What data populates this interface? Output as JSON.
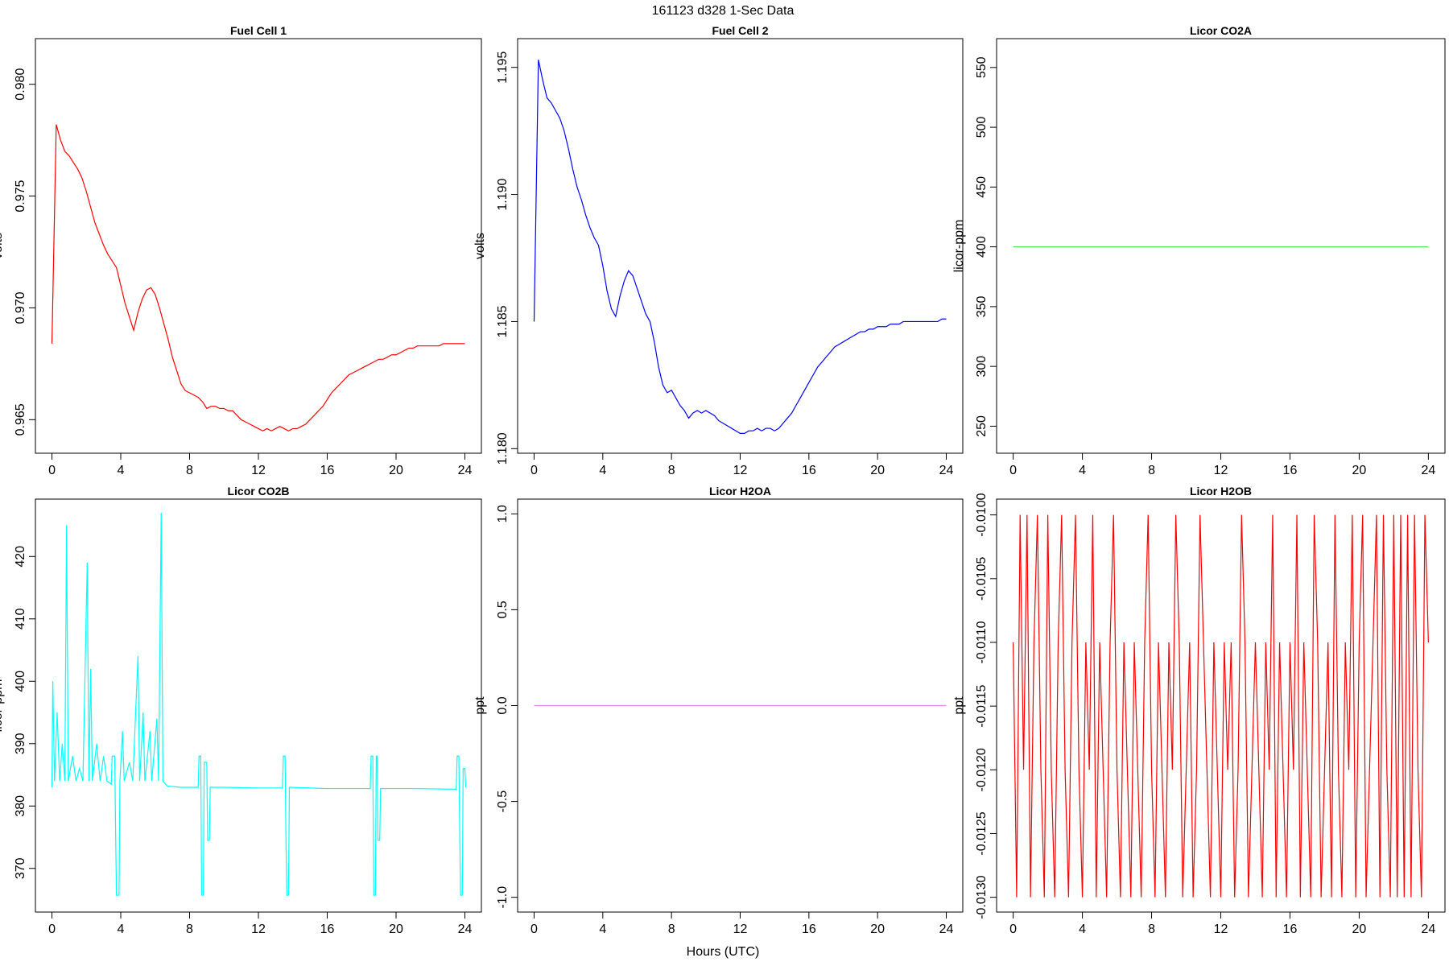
{
  "title": "161123   d328   1-Sec Data",
  "xlabel": "Hours (UTC)",
  "chart_data": [
    {
      "type": "line",
      "title": "Fuel Cell 1",
      "ylabel": "volts",
      "color": "#ff0000",
      "xlim": [
        -0.96,
        24.96
      ],
      "xticks": [
        0,
        4,
        8,
        12,
        16,
        20,
        24
      ],
      "ylim": [
        0.9635,
        0.98204
      ],
      "yticks": [
        0.965,
        {
          "value": 0.97,
          "label": "0.970"
        },
        0.975,
        {
          "value": 0.98,
          "label": "0.980"
        }
      ],
      "x": [
        0,
        0.25,
        0.5,
        0.75,
        1,
        1.25,
        1.5,
        1.75,
        2,
        2.25,
        2.5,
        2.75,
        3,
        3.25,
        3.5,
        3.75,
        4,
        4.25,
        4.5,
        4.75,
        5,
        5.25,
        5.5,
        5.75,
        6,
        6.25,
        6.5,
        6.75,
        7,
        7.25,
        7.5,
        7.75,
        8,
        8.25,
        8.5,
        8.75,
        9,
        9.25,
        9.5,
        9.75,
        10,
        10.25,
        10.5,
        10.75,
        11,
        11.25,
        11.5,
        11.75,
        12,
        12.25,
        12.5,
        12.75,
        13,
        13.25,
        13.5,
        13.75,
        14,
        14.25,
        14.5,
        14.75,
        15,
        15.25,
        15.5,
        15.75,
        16,
        16.25,
        16.5,
        16.75,
        17,
        17.25,
        17.5,
        17.75,
        18,
        18.25,
        18.5,
        18.75,
        19,
        19.25,
        19.5,
        19.75,
        20,
        20.25,
        20.5,
        20.75,
        21,
        21.25,
        21.5,
        21.75,
        22,
        22.25,
        22.5,
        22.75,
        23,
        23.25,
        23.5,
        23.75,
        24
      ],
      "values": [
        0.9684,
        0.9782,
        0.9775,
        0.977,
        0.9768,
        0.9765,
        0.9762,
        0.9758,
        0.9752,
        0.9745,
        0.9738,
        0.9733,
        0.9728,
        0.9724,
        0.9721,
        0.9718,
        0.971,
        0.9702,
        0.9696,
        0.969,
        0.9698,
        0.9704,
        0.9708,
        0.9709,
        0.9706,
        0.97,
        0.9693,
        0.9686,
        0.9678,
        0.9672,
        0.9666,
        0.9663,
        0.9662,
        0.9661,
        0.966,
        0.9658,
        0.9655,
        0.9656,
        0.9656,
        0.9655,
        0.9655,
        0.9654,
        0.9654,
        0.9652,
        0.965,
        0.9649,
        0.9648,
        0.9647,
        0.9646,
        0.9645,
        0.9646,
        0.9645,
        0.9646,
        0.9647,
        0.9646,
        0.9645,
        0.9646,
        0.9646,
        0.9647,
        0.9648,
        0.965,
        0.9652,
        0.9654,
        0.9656,
        0.9659,
        0.9662,
        0.9664,
        0.9666,
        0.9668,
        0.967,
        0.9671,
        0.9672,
        0.9673,
        0.9674,
        0.9675,
        0.9676,
        0.9677,
        0.9677,
        0.9678,
        0.9679,
        0.9679,
        0.968,
        0.9681,
        0.9682,
        0.9682,
        0.9683,
        0.9683,
        0.9683,
        0.9683,
        0.9683,
        0.9683,
        0.9684,
        0.9684,
        0.9684,
        0.9684,
        0.9684,
        0.9684
      ]
    },
    {
      "type": "line",
      "title": "Fuel Cell 2",
      "ylabel": "volts",
      "color": "#0000ff",
      "xlim": [
        -0.96,
        24.96
      ],
      "xticks": [
        0,
        4,
        8,
        12,
        16,
        20,
        24
      ],
      "ylim": [
        1.17982,
        1.19613
      ],
      "yticks": [
        {
          "value": 1.18,
          "label": "1.180"
        },
        1.185,
        {
          "value": 1.19,
          "label": "1.190"
        },
        1.195
      ],
      "x": [
        0,
        0.25,
        0.5,
        0.75,
        1,
        1.25,
        1.5,
        1.75,
        2,
        2.25,
        2.5,
        2.75,
        3,
        3.25,
        3.5,
        3.75,
        4,
        4.25,
        4.5,
        4.75,
        5,
        5.25,
        5.5,
        5.75,
        6,
        6.25,
        6.5,
        6.75,
        7,
        7.25,
        7.5,
        7.75,
        8,
        8.25,
        8.5,
        8.75,
        9,
        9.25,
        9.5,
        9.75,
        10,
        10.25,
        10.5,
        10.75,
        11,
        11.25,
        11.5,
        11.75,
        12,
        12.25,
        12.5,
        12.75,
        13,
        13.25,
        13.5,
        13.75,
        14,
        14.25,
        14.5,
        14.75,
        15,
        15.25,
        15.5,
        15.75,
        16,
        16.25,
        16.5,
        16.75,
        17,
        17.25,
        17.5,
        17.75,
        18,
        18.25,
        18.5,
        18.75,
        19,
        19.25,
        19.5,
        19.75,
        20,
        20.25,
        20.5,
        20.75,
        21,
        21.25,
        21.5,
        21.75,
        22,
        22.25,
        22.5,
        22.75,
        23,
        23.25,
        23.5,
        23.75,
        24
      ],
      "values": [
        1.185,
        1.1953,
        1.1945,
        1.1938,
        1.1936,
        1.1933,
        1.193,
        1.1925,
        1.1918,
        1.191,
        1.1903,
        1.1898,
        1.1892,
        1.1887,
        1.1883,
        1.188,
        1.1872,
        1.1862,
        1.1855,
        1.1852,
        1.186,
        1.1866,
        1.187,
        1.1868,
        1.1863,
        1.1858,
        1.1853,
        1.185,
        1.1842,
        1.1832,
        1.1825,
        1.1822,
        1.1823,
        1.182,
        1.1817,
        1.1815,
        1.1812,
        1.1814,
        1.1815,
        1.1814,
        1.1815,
        1.1814,
        1.1813,
        1.1811,
        1.181,
        1.1809,
        1.1808,
        1.1807,
        1.1806,
        1.1806,
        1.1807,
        1.1807,
        1.1808,
        1.1807,
        1.1808,
        1.1808,
        1.1807,
        1.1808,
        1.181,
        1.1812,
        1.1814,
        1.1817,
        1.182,
        1.1823,
        1.1826,
        1.1829,
        1.1832,
        1.1834,
        1.1836,
        1.1838,
        1.184,
        1.1841,
        1.1842,
        1.1843,
        1.1844,
        1.1845,
        1.1846,
        1.1846,
        1.1847,
        1.1847,
        1.1848,
        1.1848,
        1.1848,
        1.1849,
        1.1849,
        1.1849,
        1.185,
        1.185,
        1.185,
        1.185,
        1.185,
        1.185,
        1.185,
        1.185,
        1.185,
        1.1851,
        1.1851
      ]
    },
    {
      "type": "line",
      "title": "Licor CO2A",
      "ylabel": "licor-ppm",
      "color": "#55ee55",
      "xlim": [
        -0.96,
        24.96
      ],
      "xticks": [
        0,
        4,
        8,
        12,
        16,
        20,
        24
      ],
      "ylim": [
        227.4,
        574.1
      ],
      "yticks": [
        250,
        300,
        350,
        400,
        450,
        500,
        550
      ],
      "x": [
        0,
        24
      ],
      "values": [
        400,
        400
      ]
    },
    {
      "type": "line",
      "title": "Licor CO2B",
      "ylabel": "licor-ppm",
      "color": "#00ffff",
      "xlim": [
        -0.96,
        24.96
      ],
      "xticks": [
        0,
        4,
        8,
        12,
        16,
        20,
        24
      ],
      "ylim": [
        363.0,
        429.2
      ],
      "yticks": [
        370,
        380,
        390,
        400,
        410,
        420
      ],
      "x": [
        0,
        0.05,
        0.15,
        0.3,
        0.45,
        0.6,
        0.75,
        0.85,
        0.95,
        1.2,
        1.4,
        1.6,
        1.8,
        2.05,
        2.15,
        2.25,
        2.35,
        2.6,
        2.8,
        3.0,
        3.2,
        3.45,
        3.5,
        3.65,
        3.7,
        3.75,
        3.9,
        3.95,
        4.1,
        4.2,
        4.5,
        4.7,
        5.0,
        5.1,
        5.3,
        5.4,
        5.7,
        5.8,
        6.1,
        6.2,
        6.35,
        6.45,
        6.7,
        7.5,
        8.5,
        8.55,
        8.65,
        8.7,
        8.8,
        8.85,
        9.0,
        9.05,
        9.15,
        9.2,
        10,
        12,
        13.4,
        13.45,
        13.55,
        13.6,
        13.65,
        13.75,
        13.8,
        16,
        18.5,
        18.55,
        18.65,
        18.7,
        18.8,
        18.85,
        18.9,
        18.95,
        19.05,
        19.1,
        21,
        23.5,
        23.55,
        23.65,
        23.7,
        23.75,
        23.85,
        23.9,
        24.0,
        24.05
      ],
      "values": [
        383,
        400,
        384,
        395,
        384,
        390,
        384,
        425,
        384,
        388,
        384,
        386,
        384,
        419,
        384,
        402,
        384,
        390,
        384,
        388,
        384,
        383.5,
        388,
        388,
        376,
        365.7,
        365.7,
        384,
        392,
        384,
        387,
        384,
        404,
        384,
        395,
        384,
        392,
        384,
        394,
        384,
        427,
        384,
        383.2,
        383,
        383,
        388,
        388,
        365.7,
        365.7,
        387,
        387,
        374.5,
        374.5,
        383,
        383,
        382.9,
        382.9,
        388,
        388,
        375,
        365.7,
        365.7,
        383,
        382.8,
        382.8,
        388,
        388,
        365.7,
        365.7,
        388,
        388,
        374.5,
        374.5,
        382.8,
        382.8,
        382.7,
        388,
        388,
        376,
        365.7,
        365.7,
        386,
        386,
        383
      ]
    },
    {
      "type": "line",
      "title": "Licor H2OA",
      "ylabel": "ppt",
      "color": "#ee82ee",
      "xlim": [
        -0.96,
        24.96
      ],
      "xticks": [
        0,
        4,
        8,
        12,
        16,
        20,
        24
      ],
      "ylim": [
        -1.077,
        1.077
      ],
      "yticks": [
        {
          "value": -1.0,
          "label": "-1.0"
        },
        -0.5,
        {
          "value": 0.0,
          "label": "0.0"
        },
        0.5,
        {
          "value": 1.0,
          "label": "1.0"
        }
      ],
      "x": [
        0,
        24
      ],
      "values": [
        0,
        0
      ]
    },
    {
      "type": "line",
      "title": "Licor H2OB",
      "ylabel": "ppt",
      "color": "#ff0000",
      "xlim": [
        -0.96,
        24.96
      ],
      "xticks": [
        0,
        4,
        8,
        12,
        16,
        20,
        24
      ],
      "ylim": [
        -0.013116,
        -0.009876
      ],
      "yticks": [
        {
          "value": -0.013,
          "label": "-0.0130"
        },
        {
          "value": -0.0125,
          "label": "-0.0125"
        },
        {
          "value": -0.012,
          "label": "-0.0120"
        },
        {
          "value": -0.0115,
          "label": "-0.0115"
        },
        {
          "value": -0.011,
          "label": "-0.0110"
        },
        {
          "value": -0.0105,
          "label": "-0.0105"
        },
        {
          "value": -0.01,
          "label": "-0.0100"
        }
      ],
      "x": [
        0,
        0.2,
        0.4,
        0.6,
        0.8,
        1,
        1.2,
        1.4,
        1.6,
        1.8,
        2,
        2.2,
        2.4,
        2.6,
        2.8,
        3,
        3.2,
        3.4,
        3.6,
        3.8,
        4,
        4.2,
        4.4,
        4.6,
        4.8,
        5,
        5.2,
        5.4,
        5.6,
        5.8,
        6,
        6.2,
        6.4,
        6.6,
        6.8,
        7,
        7.2,
        7.4,
        7.6,
        7.8,
        8,
        8.2,
        8.4,
        8.6,
        8.8,
        9,
        9.2,
        9.4,
        9.6,
        9.8,
        10,
        10.2,
        10.4,
        10.6,
        10.8,
        11,
        11.2,
        11.4,
        11.6,
        11.8,
        12,
        12.2,
        12.4,
        12.6,
        12.8,
        13,
        13.2,
        13.4,
        13.6,
        13.8,
        14,
        14.2,
        14.4,
        14.6,
        14.8,
        15,
        15.2,
        15.4,
        15.6,
        15.8,
        16,
        16.2,
        16.4,
        16.6,
        16.8,
        17,
        17.2,
        17.4,
        17.6,
        17.8,
        18,
        18.2,
        18.4,
        18.6,
        18.8,
        19,
        19.2,
        19.4,
        19.6,
        19.8,
        20,
        20.2,
        20.4,
        20.6,
        20.8,
        21,
        21.2,
        21.4,
        21.6,
        21.8,
        22,
        22.2,
        22.4,
        22.6,
        22.8,
        23,
        23.2,
        23.4,
        23.6,
        23.8,
        24
      ],
      "values": [
        -0.011,
        -0.013,
        -0.01,
        -0.012,
        -0.01,
        -0.013,
        -0.011,
        -0.01,
        -0.012,
        -0.013,
        -0.01,
        -0.012,
        -0.013,
        -0.011,
        -0.01,
        -0.012,
        -0.013,
        -0.011,
        -0.01,
        -0.012,
        -0.013,
        -0.011,
        -0.012,
        -0.01,
        -0.013,
        -0.011,
        -0.012,
        -0.013,
        -0.011,
        -0.01,
        -0.012,
        -0.013,
        -0.011,
        -0.012,
        -0.013,
        -0.011,
        -0.012,
        -0.013,
        -0.011,
        -0.01,
        -0.012,
        -0.013,
        -0.011,
        -0.012,
        -0.013,
        -0.011,
        -0.012,
        -0.01,
        -0.011,
        -0.013,
        -0.012,
        -0.011,
        -0.013,
        -0.012,
        -0.01,
        -0.011,
        -0.012,
        -0.013,
        -0.011,
        -0.012,
        -0.013,
        -0.011,
        -0.012,
        -0.011,
        -0.013,
        -0.012,
        -0.01,
        -0.011,
        -0.013,
        -0.012,
        -0.011,
        -0.012,
        -0.013,
        -0.011,
        -0.012,
        -0.01,
        -0.013,
        -0.011,
        -0.012,
        -0.013,
        -0.011,
        -0.012,
        -0.01,
        -0.013,
        -0.011,
        -0.012,
        -0.013,
        -0.01,
        -0.011,
        -0.013,
        -0.012,
        -0.011,
        -0.013,
        -0.01,
        -0.012,
        -0.013,
        -0.011,
        -0.012,
        -0.01,
        -0.013,
        -0.011,
        -0.01,
        -0.013,
        -0.012,
        -0.011,
        -0.01,
        -0.013,
        -0.01,
        -0.012,
        -0.013,
        -0.01,
        -0.013,
        -0.01,
        -0.013,
        -0.01,
        -0.013,
        -0.01,
        -0.012,
        -0.013,
        -0.01,
        -0.011
      ]
    }
  ]
}
